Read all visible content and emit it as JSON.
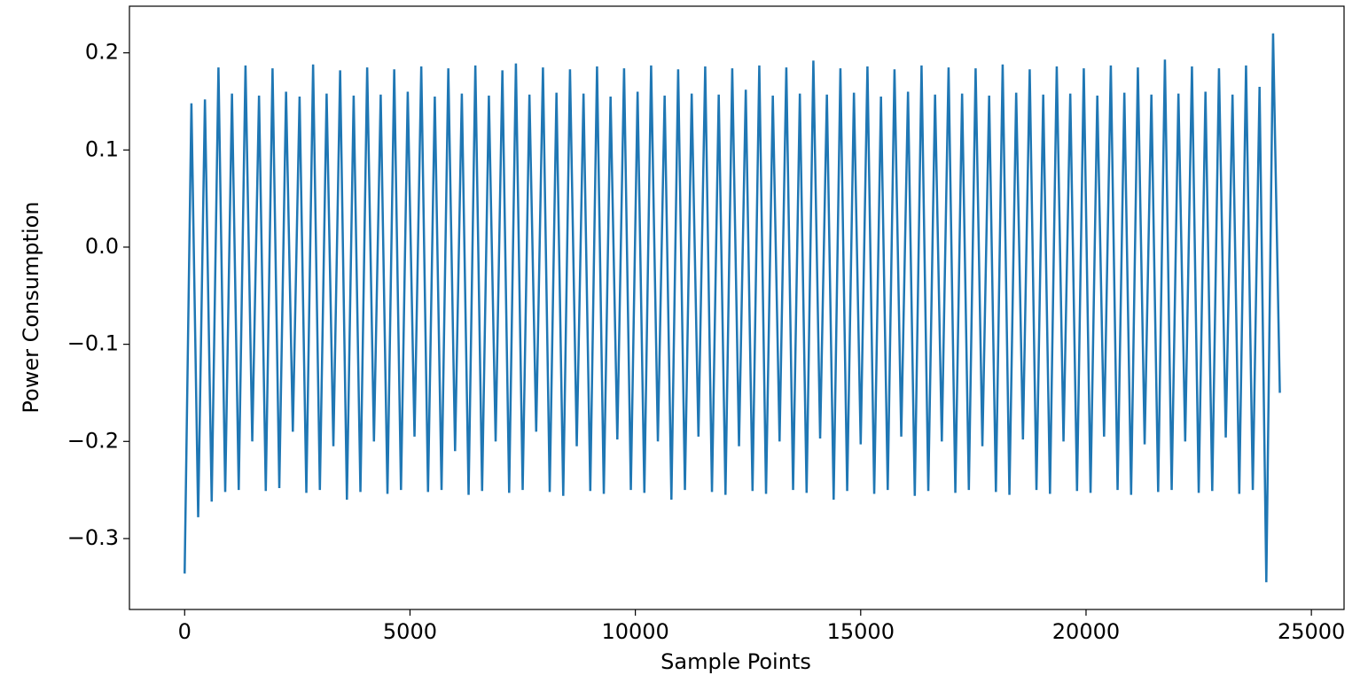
{
  "chart_data": {
    "type": "line",
    "xlabel": "Sample Points",
    "ylabel": "Power Consumption",
    "xlim": [
      -1225,
      25725
    ],
    "ylim": [
      -0.373,
      0.248
    ],
    "xticks": [
      0,
      5000,
      10000,
      15000,
      20000,
      25000
    ],
    "yticks": [
      {
        "value": -0.3,
        "label": "−0.3"
      },
      {
        "value": -0.2,
        "label": "−0.2"
      },
      {
        "value": -0.1,
        "label": "−0.1"
      },
      {
        "value": 0,
        "label": "0.0"
      },
      0.1,
      0.2
    ],
    "grid": false,
    "series": [
      {
        "color": "#1f77b4",
        "x": [
          0,
          150,
          300,
          450,
          600,
          750,
          900,
          1050,
          1200,
          1350,
          1500,
          1650,
          1800,
          1950,
          2100,
          2250,
          2400,
          2550,
          2700,
          2850,
          3000,
          3150,
          3300,
          3450,
          3600,
          3750,
          3900,
          4050,
          4200,
          4350,
          4500,
          4650,
          4800,
          4950,
          5100,
          5250,
          5400,
          5550,
          5700,
          5850,
          6000,
          6150,
          6300,
          6450,
          6600,
          6750,
          6900,
          7050,
          7200,
          7350,
          7500,
          7650,
          7800,
          7950,
          8100,
          8250,
          8400,
          8550,
          8700,
          8850,
          9000,
          9150,
          9300,
          9450,
          9600,
          9750,
          9900,
          10050,
          10200,
          10350,
          10500,
          10650,
          10800,
          10950,
          11100,
          11250,
          11400,
          11550,
          11700,
          11850,
          12000,
          12150,
          12300,
          12450,
          12600,
          12750,
          12900,
          13050,
          13200,
          13350,
          13500,
          13650,
          13800,
          13950,
          14100,
          14250,
          14400,
          14550,
          14700,
          14850,
          15000,
          15150,
          15300,
          15450,
          15600,
          15750,
          15900,
          16050,
          16200,
          16350,
          16500,
          16650,
          16800,
          16950,
          17100,
          17250,
          17400,
          17550,
          17700,
          17850,
          18000,
          18150,
          18300,
          18450,
          18600,
          18750,
          18900,
          19050,
          19200,
          19350,
          19500,
          19650,
          19800,
          19950,
          20100,
          20250,
          20400,
          20550,
          20700,
          20850,
          21000,
          21150,
          21300,
          21450,
          21600,
          21750,
          21900,
          22050,
          22200,
          22350,
          22500,
          22650,
          22800,
          22950,
          23100,
          23250,
          23400,
          23550,
          23700,
          23850,
          24000,
          24150,
          24300
        ],
        "values": [
          -0.336,
          0.148,
          -0.278,
          0.152,
          -0.262,
          0.185,
          -0.252,
          0.158,
          -0.25,
          0.187,
          -0.2,
          0.156,
          -0.251,
          0.184,
          -0.248,
          0.16,
          -0.19,
          0.155,
          -0.253,
          0.188,
          -0.25,
          0.158,
          -0.205,
          0.182,
          -0.26,
          0.156,
          -0.252,
          0.185,
          -0.2,
          0.157,
          -0.254,
          0.183,
          -0.25,
          0.16,
          -0.195,
          0.186,
          -0.252,
          0.155,
          -0.25,
          0.184,
          -0.21,
          0.158,
          -0.255,
          0.187,
          -0.251,
          0.156,
          -0.2,
          0.182,
          -0.253,
          0.189,
          -0.25,
          0.157,
          -0.19,
          0.185,
          -0.252,
          0.159,
          -0.256,
          0.183,
          -0.205,
          0.158,
          -0.251,
          0.186,
          -0.254,
          0.155,
          -0.198,
          0.184,
          -0.25,
          0.16,
          -0.253,
          0.187,
          -0.2,
          0.156,
          -0.26,
          0.183,
          -0.25,
          0.158,
          -0.195,
          0.186,
          -0.252,
          0.157,
          -0.255,
          0.184,
          -0.205,
          0.162,
          -0.251,
          0.187,
          -0.254,
          0.156,
          -0.2,
          0.185,
          -0.25,
          0.158,
          -0.253,
          0.192,
          -0.197,
          0.157,
          -0.26,
          0.184,
          -0.251,
          0.159,
          -0.203,
          0.186,
          -0.254,
          0.155,
          -0.25,
          0.183,
          -0.195,
          0.16,
          -0.256,
          0.187,
          -0.251,
          0.157,
          -0.2,
          0.185,
          -0.253,
          0.158,
          -0.25,
          0.184,
          -0.205,
          0.156,
          -0.252,
          0.188,
          -0.255,
          0.159,
          -0.198,
          0.183,
          -0.25,
          0.157,
          -0.254,
          0.186,
          -0.2,
          0.158,
          -0.251,
          0.184,
          -0.253,
          0.156,
          -0.195,
          0.187,
          -0.25,
          0.159,
          -0.255,
          0.185,
          -0.203,
          0.157,
          -0.252,
          0.193,
          -0.25,
          0.158,
          -0.2,
          0.186,
          -0.253,
          0.16,
          -0.251,
          0.184,
          -0.196,
          0.157,
          -0.254,
          0.187,
          -0.25,
          0.165,
          -0.345,
          0.22,
          -0.15
        ]
      }
    ]
  }
}
